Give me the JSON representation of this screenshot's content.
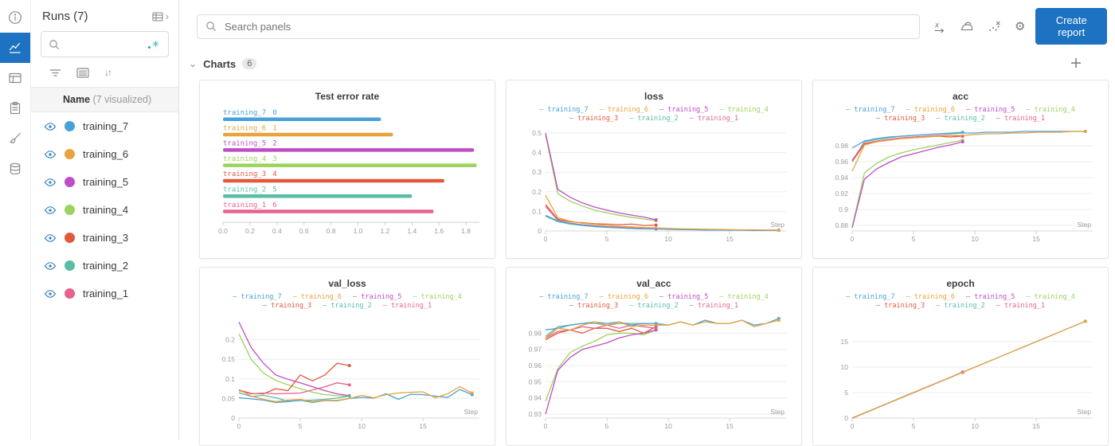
{
  "icons": {
    "sort": "↓↑",
    "gear": "⚙",
    "regex_star": "✳",
    "section_chevron": "⌄",
    "expand_chevron": "›",
    "add": "+"
  },
  "runs_panel": {
    "title": "Runs (7)",
    "search_placeholder": "",
    "name_label": "Name",
    "visualized_label": "(7 visualized)",
    "runs": [
      {
        "name": "training_7",
        "color": "#4aa1d9"
      },
      {
        "name": "training_6",
        "color": "#e8a33d"
      },
      {
        "name": "training_5",
        "color": "#bf4dc5"
      },
      {
        "name": "training_4",
        "color": "#9cd35e"
      },
      {
        "name": "training_3",
        "color": "#e2593c"
      },
      {
        "name": "training_2",
        "color": "#58bda6"
      },
      {
        "name": "training_1",
        "color": "#e7628c"
      }
    ]
  },
  "topbar": {
    "search_placeholder": "Search panels",
    "create_report_label": "Create report"
  },
  "section": {
    "title": "Charts",
    "count": "6"
  },
  "chart_data": [
    {
      "type": "bar",
      "title": "Test error rate",
      "orientation": "horizontal",
      "xlim": [
        0,
        1.9
      ],
      "xticks": [
        [
          0,
          "0.0"
        ],
        [
          0.2,
          "0.2"
        ],
        [
          0.4,
          "0.4"
        ],
        [
          0.6,
          "0.6"
        ],
        [
          0.8,
          "0.8"
        ],
        [
          1.0,
          "1.0"
        ],
        [
          1.2,
          "1.2"
        ],
        [
          1.4,
          "1.4"
        ],
        [
          1.6,
          "1.6"
        ],
        [
          1.8,
          "1.8"
        ]
      ],
      "bars": [
        {
          "label": "training_7",
          "index": "0",
          "value": 1.17,
          "color": "#4aa1d9"
        },
        {
          "label": "training_6",
          "index": "1",
          "value": 1.26,
          "color": "#e8a33d"
        },
        {
          "label": "training_5",
          "index": "2",
          "value": 1.86,
          "color": "#bf4dc5"
        },
        {
          "label": "training_4",
          "index": "3",
          "value": 1.88,
          "color": "#9cd35e"
        },
        {
          "label": "training_3",
          "index": "4",
          "value": 1.64,
          "color": "#e2593c"
        },
        {
          "label": "training_2",
          "index": "5",
          "value": 1.4,
          "color": "#58bda6"
        },
        {
          "label": "training_1",
          "index": "6",
          "value": 1.56,
          "color": "#e7628c"
        }
      ]
    },
    {
      "type": "line",
      "title": "loss",
      "xlabel": "Step",
      "xlim": [
        0,
        19.6
      ],
      "xticks": [
        [
          0,
          "0"
        ],
        [
          5,
          "5"
        ],
        [
          10,
          "10"
        ],
        [
          15,
          "15"
        ]
      ],
      "ylim": [
        0,
        0.52
      ],
      "yticks": [
        [
          0,
          "0"
        ],
        [
          0.1,
          "0.1"
        ],
        [
          0.2,
          "0.2"
        ],
        [
          0.3,
          "0.3"
        ],
        [
          0.4,
          "0.4"
        ],
        [
          0.5,
          "0.5"
        ]
      ],
      "series": [
        {
          "name": "training_7",
          "color": "#4aa1d9",
          "values": [
            0.08,
            0.052,
            0.038,
            0.03,
            0.024,
            0.02,
            0.016,
            0.013,
            0.011,
            0.01,
            0.008,
            0.007,
            0.006,
            0.005,
            0.005,
            0.004,
            0.004,
            0.003,
            0.003,
            0.003
          ]
        },
        {
          "name": "training_6",
          "color": "#e8a33d",
          "values": [
            0.182,
            0.068,
            0.05,
            0.04,
            0.034,
            0.028,
            0.024,
            0.021,
            0.018,
            0.016,
            0.013,
            0.011,
            0.01,
            0.009,
            0.008,
            0.007,
            0.006,
            0.006,
            0.005,
            0.005
          ]
        },
        {
          "name": "training_5",
          "color": "#bf4dc5",
          "values": [
            0.5,
            0.212,
            0.172,
            0.143,
            0.122,
            0.106,
            0.092,
            0.081,
            0.071,
            0.057
          ]
        },
        {
          "name": "training_4",
          "color": "#9cd35e",
          "values": [
            0.49,
            0.19,
            0.152,
            0.127,
            0.107,
            0.092,
            0.08,
            0.07,
            0.061,
            0.053
          ]
        },
        {
          "name": "training_3",
          "color": "#e2593c",
          "values": [
            0.135,
            0.06,
            0.047,
            0.042,
            0.037,
            0.035,
            0.032,
            0.035,
            0.028,
            0.03
          ]
        },
        {
          "name": "training_2",
          "color": "#58bda6",
          "values": [
            0.075,
            0.048,
            0.035,
            0.028,
            0.022,
            0.018,
            0.016,
            0.013,
            0.011,
            0.01
          ]
        },
        {
          "name": "training_1",
          "color": "#e7628c",
          "values": [
            0.125,
            0.055,
            0.04,
            0.032,
            0.027,
            0.022,
            0.02,
            0.016,
            0.013,
            0.012
          ]
        }
      ]
    },
    {
      "type": "line",
      "title": "acc",
      "xlabel": "Step",
      "xlim": [
        0,
        19.6
      ],
      "xticks": [
        [
          0,
          "0"
        ],
        [
          5,
          "5"
        ],
        [
          10,
          "10"
        ],
        [
          15,
          "15"
        ]
      ],
      "ylim": [
        0.873,
        1.001
      ],
      "yticks": [
        [
          0.88,
          "0.88"
        ],
        [
          0.9,
          "0.9"
        ],
        [
          0.92,
          "0.92"
        ],
        [
          0.94,
          "0.94"
        ],
        [
          0.96,
          "0.96"
        ],
        [
          0.98,
          "0.98"
        ]
      ],
      "series": [
        {
          "name": "training_7",
          "color": "#4aa1d9",
          "values": [
            0.977,
            0.986,
            0.989,
            0.991,
            0.992,
            0.993,
            0.994,
            0.995,
            0.995,
            0.996,
            0.996,
            0.997,
            0.997,
            0.997,
            0.998,
            0.998,
            0.998,
            0.998,
            0.998,
            0.998
          ]
        },
        {
          "name": "training_6",
          "color": "#e8a33d",
          "values": [
            0.948,
            0.981,
            0.985,
            0.987,
            0.989,
            0.99,
            0.991,
            0.992,
            0.993,
            0.993,
            0.994,
            0.995,
            0.995,
            0.996,
            0.996,
            0.997,
            0.997,
            0.997,
            0.998,
            0.998
          ]
        },
        {
          "name": "training_5",
          "color": "#bf4dc5",
          "values": [
            0.877,
            0.938,
            0.951,
            0.959,
            0.966,
            0.97,
            0.974,
            0.978,
            0.981,
            0.985
          ]
        },
        {
          "name": "training_4",
          "color": "#9cd35e",
          "values": [
            0.878,
            0.946,
            0.958,
            0.966,
            0.971,
            0.975,
            0.978,
            0.981,
            0.984,
            0.987
          ]
        },
        {
          "name": "training_3",
          "color": "#e2593c",
          "values": [
            0.96,
            0.982,
            0.985,
            0.987,
            0.989,
            0.99,
            0.991,
            0.992,
            0.991,
            0.992
          ]
        },
        {
          "name": "training_2",
          "color": "#58bda6",
          "values": [
            0.961,
            0.985,
            0.988,
            0.99,
            0.992,
            0.993,
            0.994,
            0.995,
            0.996,
            0.997
          ]
        },
        {
          "name": "training_1",
          "color": "#e7628c",
          "values": [
            0.962,
            0.983,
            0.986,
            0.988,
            0.99,
            0.991,
            0.992,
            0.993,
            0.993,
            0.992
          ]
        }
      ]
    },
    {
      "type": "line",
      "title": "val_loss",
      "xlabel": "Step",
      "xlim": [
        0,
        19.6
      ],
      "xticks": [
        [
          0,
          "0"
        ],
        [
          5,
          "5"
        ],
        [
          10,
          "10"
        ],
        [
          15,
          "15"
        ]
      ],
      "ylim": [
        0,
        0.26
      ],
      "yticks": [
        [
          0,
          "0"
        ],
        [
          0.05,
          "0.05"
        ],
        [
          0.1,
          "0.1"
        ],
        [
          0.15,
          "0.15"
        ],
        [
          0.2,
          "0.2"
        ]
      ],
      "series": [
        {
          "name": "training_7",
          "color": "#4aa1d9",
          "values": [
            0.052,
            0.049,
            0.046,
            0.04,
            0.042,
            0.046,
            0.04,
            0.045,
            0.044,
            0.05,
            0.053,
            0.051,
            0.062,
            0.048,
            0.061,
            0.06,
            0.056,
            0.053,
            0.073,
            0.06
          ]
        },
        {
          "name": "training_6",
          "color": "#e8a33d",
          "values": [
            0.073,
            0.056,
            0.048,
            0.042,
            0.046,
            0.048,
            0.042,
            0.046,
            0.045,
            0.05,
            0.058,
            0.052,
            0.06,
            0.064,
            0.066,
            0.067,
            0.052,
            0.062,
            0.08,
            0.064
          ]
        },
        {
          "name": "training_5",
          "color": "#bf4dc5",
          "values": [
            0.245,
            0.18,
            0.14,
            0.11,
            0.099,
            0.09,
            0.08,
            0.07,
            0.062,
            0.057
          ]
        },
        {
          "name": "training_4",
          "color": "#9cd35e",
          "values": [
            0.215,
            0.15,
            0.115,
            0.096,
            0.085,
            0.075,
            0.066,
            0.06,
            0.057,
            0.056
          ]
        },
        {
          "name": "training_3",
          "color": "#e2593c",
          "values": [
            0.072,
            0.063,
            0.062,
            0.075,
            0.07,
            0.11,
            0.095,
            0.11,
            0.14,
            0.134
          ]
        },
        {
          "name": "training_2",
          "color": "#58bda6",
          "values": [
            0.065,
            0.055,
            0.058,
            0.052,
            0.043,
            0.045,
            0.046,
            0.048,
            0.051,
            0.056
          ]
        },
        {
          "name": "training_1",
          "color": "#e7628c",
          "values": [
            0.07,
            0.062,
            0.064,
            0.062,
            0.063,
            0.064,
            0.072,
            0.08,
            0.09,
            0.085
          ]
        }
      ]
    },
    {
      "type": "line",
      "title": "val_acc",
      "xlabel": "Step",
      "xlim": [
        0,
        19.6
      ],
      "xticks": [
        [
          0,
          "0"
        ],
        [
          5,
          "5"
        ],
        [
          10,
          "10"
        ],
        [
          15,
          "15"
        ]
      ],
      "ylim": [
        0.9275,
        0.9905
      ],
      "yticks": [
        [
          0.93,
          "0.93"
        ],
        [
          0.94,
          "0.94"
        ],
        [
          0.95,
          "0.95"
        ],
        [
          0.96,
          "0.96"
        ],
        [
          0.97,
          "0.97"
        ],
        [
          0.98,
          "0.98"
        ]
      ],
      "series": [
        {
          "name": "training_7",
          "color": "#4aa1d9",
          "values": [
            0.982,
            0.983,
            0.985,
            0.986,
            0.987,
            0.986,
            0.987,
            0.985,
            0.986,
            0.986,
            0.985,
            0.987,
            0.985,
            0.988,
            0.986,
            0.986,
            0.988,
            0.985,
            0.986,
            0.989
          ]
        },
        {
          "name": "training_6",
          "color": "#e8a33d",
          "values": [
            0.977,
            0.983,
            0.982,
            0.985,
            0.987,
            0.985,
            0.987,
            0.984,
            0.985,
            0.985,
            0.985,
            0.987,
            0.985,
            0.987,
            0.986,
            0.986,
            0.988,
            0.984,
            0.986,
            0.988
          ]
        },
        {
          "name": "training_5",
          "color": "#bf4dc5",
          "values": [
            0.93,
            0.957,
            0.965,
            0.97,
            0.972,
            0.974,
            0.977,
            0.979,
            0.98,
            0.982
          ]
        },
        {
          "name": "training_4",
          "color": "#9cd35e",
          "values": [
            0.938,
            0.958,
            0.968,
            0.972,
            0.975,
            0.979,
            0.98,
            0.98,
            0.979,
            0.982
          ]
        },
        {
          "name": "training_3",
          "color": "#e2593c",
          "values": [
            0.976,
            0.98,
            0.982,
            0.98,
            0.983,
            0.983,
            0.981,
            0.983,
            0.98,
            0.984
          ]
        },
        {
          "name": "training_2",
          "color": "#58bda6",
          "values": [
            0.978,
            0.984,
            0.985,
            0.986,
            0.986,
            0.985,
            0.986,
            0.986,
            0.986,
            0.986
          ]
        },
        {
          "name": "training_1",
          "color": "#e7628c",
          "values": [
            0.977,
            0.981,
            0.982,
            0.984,
            0.983,
            0.985,
            0.983,
            0.985,
            0.984,
            0.983
          ]
        }
      ]
    },
    {
      "type": "line",
      "title": "epoch",
      "xlabel": "Step",
      "xlim": [
        0,
        19.6
      ],
      "xticks": [
        [
          0,
          "0"
        ],
        [
          5,
          "5"
        ],
        [
          10,
          "10"
        ],
        [
          15,
          "15"
        ]
      ],
      "ylim": [
        0,
        20
      ],
      "yticks": [
        [
          0,
          "0"
        ],
        [
          5,
          "5"
        ],
        [
          10,
          "10"
        ],
        [
          15,
          "15"
        ]
      ],
      "series": [
        {
          "name": "training_7",
          "color": "#4aa1d9",
          "values": [
            0,
            1,
            2,
            3,
            4,
            5,
            6,
            7,
            8,
            9,
            10,
            11,
            12,
            13,
            14,
            15,
            16,
            17,
            18,
            19
          ]
        },
        {
          "name": "training_6",
          "color": "#e8a33d",
          "values": [
            0,
            1,
            2,
            3,
            4,
            5,
            6,
            7,
            8,
            9,
            10,
            11,
            12,
            13,
            14,
            15,
            16,
            17,
            18,
            19
          ]
        },
        {
          "name": "training_5",
          "color": "#bf4dc5",
          "values": [
            0,
            1,
            2,
            3,
            4,
            5,
            6,
            7,
            8,
            9
          ]
        },
        {
          "name": "training_4",
          "color": "#9cd35e",
          "values": [
            0,
            1,
            2,
            3,
            4,
            5,
            6,
            7,
            8,
            9
          ]
        },
        {
          "name": "training_3",
          "color": "#e2593c",
          "values": [
            0,
            1,
            2,
            3,
            4,
            5,
            6,
            7,
            8,
            9
          ]
        },
        {
          "name": "training_2",
          "color": "#58bda6",
          "values": [
            0,
            1,
            2,
            3,
            4,
            5,
            6,
            7,
            8,
            9
          ]
        },
        {
          "name": "training_1",
          "color": "#e7628c",
          "values": [
            0,
            1,
            2,
            3,
            4,
            5,
            6,
            7,
            8,
            9
          ]
        }
      ]
    }
  ]
}
